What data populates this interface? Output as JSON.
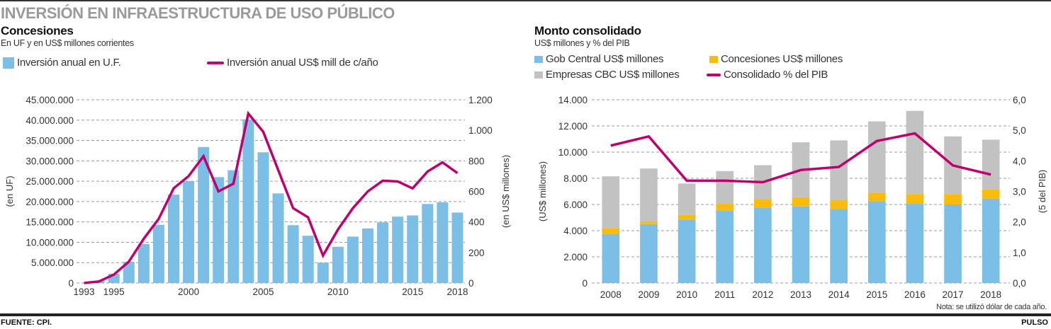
{
  "header": {
    "title": "INVERSIÓN EN INFRAESTRUCTURA DE USO PÚBLICO"
  },
  "footer": {
    "source": "FUENTE: CPI.",
    "brand": "PULSO",
    "note": "Nota: se utilizó dólar de cada año."
  },
  "colors": {
    "blue": "#7bbee6",
    "magenta": "#c0006e",
    "yellow": "#fbbb0a",
    "gray": "#c2c2c2",
    "grid": "#999999",
    "title_gray": "#9a9a9a"
  },
  "chart_data": [
    {
      "type": "bar",
      "title": "Concesiones",
      "subtitle": "En UF y en US$ millones corrientes",
      "legend": [
        {
          "name": "Inversión anual  en U.F.",
          "kind": "bar"
        },
        {
          "name": "Inversión anual US$ mill de c/año",
          "kind": "line"
        }
      ],
      "legend_position": "top",
      "ylabel": "(en UF)",
      "y2label": "(en US$ millones)",
      "ylim": [
        0,
        45000000
      ],
      "y2lim": [
        0,
        1200
      ],
      "yticks": [
        "0",
        "5.000.000",
        "10.000.000",
        "15.000.000",
        "20.000.000",
        "25.000.000",
        "30.000.000",
        "35.000.000",
        "40.000.000",
        "45.000.000"
      ],
      "y2ticks": [
        "0",
        "200",
        "400",
        "600",
        "800",
        "1.000",
        "1.200"
      ],
      "xtick_labels": [
        {
          "year": 1993,
          "label": "1993"
        },
        {
          "year": 1995,
          "label": "1995"
        },
        {
          "year": 2000,
          "label": "2000"
        },
        {
          "year": 2005,
          "label": "2005"
        },
        {
          "year": 2010,
          "label": "2010"
        },
        {
          "year": 2015,
          "label": "2015"
        },
        {
          "year": 2018,
          "label": "2018"
        }
      ],
      "grid": true,
      "x": [
        1993,
        1994,
        1995,
        1996,
        1997,
        1998,
        1999,
        2000,
        2001,
        2002,
        2003,
        2004,
        2005,
        2006,
        2007,
        2008,
        2009,
        2010,
        2011,
        2012,
        2013,
        2014,
        2015,
        2016,
        2017,
        2018
      ],
      "series": [
        {
          "name": "Inversión anual en U.F.",
          "axis": "left",
          "type": "bar",
          "values": [
            0,
            500000,
            2300000,
            5200000,
            9600000,
            14300000,
            21700000,
            25000000,
            33400000,
            26000000,
            27700000,
            40200000,
            32100000,
            22000000,
            14200000,
            11600000,
            5000000,
            8900000,
            11400000,
            13400000,
            14900000,
            16300000,
            16600000,
            19400000,
            19800000,
            17300000
          ]
        },
        {
          "name": "Inversión anual US$ mill de c/año",
          "axis": "right",
          "type": "line",
          "values": [
            0,
            10,
            55,
            140,
            290,
            420,
            620,
            700,
            830,
            600,
            650,
            1110,
            990,
            740,
            490,
            430,
            180,
            350,
            490,
            600,
            670,
            665,
            620,
            730,
            790,
            720
          ]
        }
      ]
    },
    {
      "type": "bar",
      "stacked": true,
      "title": "Monto consolidado",
      "subtitle": "US$ millones y % del PIB",
      "legend": [
        {
          "name": "Gob Central US$ millones",
          "kind": "bar"
        },
        {
          "name": "Concesiones US$ millones",
          "kind": "bar"
        },
        {
          "name": "Empresas CBC US$ millones",
          "kind": "bar"
        },
        {
          "name": "Consolidado % del PIB",
          "kind": "line"
        }
      ],
      "legend_position": "top",
      "ylabel": "(US$ millones)",
      "y2label": "(5 del PIB)",
      "ylim": [
        0,
        14000
      ],
      "y2lim": [
        0,
        6
      ],
      "yticks": [
        "0",
        "2.000",
        "4.000",
        "6.000",
        "8.000",
        "10.000",
        "12.000",
        "14.000"
      ],
      "y2ticks": [
        "0,0",
        "1,0",
        "2,0",
        "3,0",
        "4,0",
        "5,0",
        "6,0"
      ],
      "categories": [
        "2008",
        "2009",
        "2010",
        "2011",
        "2012",
        "2013",
        "2014",
        "2015",
        "2016",
        "2017",
        "2018"
      ],
      "grid": true,
      "series": [
        {
          "name": "Gob Central US$ millones",
          "axis": "left",
          "type": "bar",
          "values": [
            3750,
            4500,
            4850,
            5550,
            5750,
            5850,
            5650,
            6250,
            6050,
            6000,
            6450
          ]
        },
        {
          "name": "Concesiones US$ millones",
          "axis": "left",
          "type": "bar",
          "values": [
            450,
            200,
            350,
            500,
            650,
            700,
            700,
            650,
            750,
            800,
            700
          ]
        },
        {
          "name": "Empresas CBC US$ millones",
          "axis": "left",
          "type": "bar",
          "values": [
            3950,
            4050,
            2400,
            2500,
            2600,
            4200,
            4550,
            5450,
            6350,
            4400,
            3800
          ]
        },
        {
          "name": "Consolidado % del PIB",
          "axis": "right",
          "type": "line",
          "values": [
            4.5,
            4.8,
            3.35,
            3.35,
            3.3,
            3.7,
            3.8,
            4.65,
            4.9,
            3.85,
            3.55
          ]
        }
      ]
    }
  ]
}
